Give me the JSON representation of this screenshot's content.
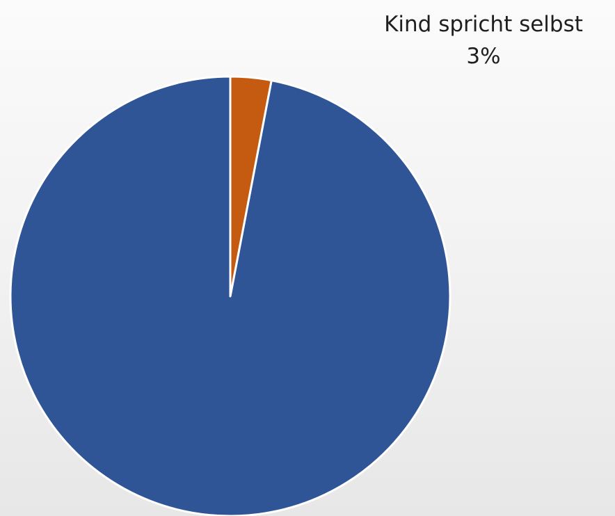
{
  "chart_data": {
    "type": "pie",
    "slices": [
      {
        "label": "",
        "value": 97,
        "color": "#2f5597"
      },
      {
        "label": "Kind spricht selbst",
        "value": 3,
        "value_label": "3%",
        "color": "#c55a11"
      }
    ],
    "start_angle_deg": -90,
    "clockwise": false
  },
  "labels": {
    "slice_2_name": "Kind spricht selbst",
    "slice_2_value": "3%"
  }
}
